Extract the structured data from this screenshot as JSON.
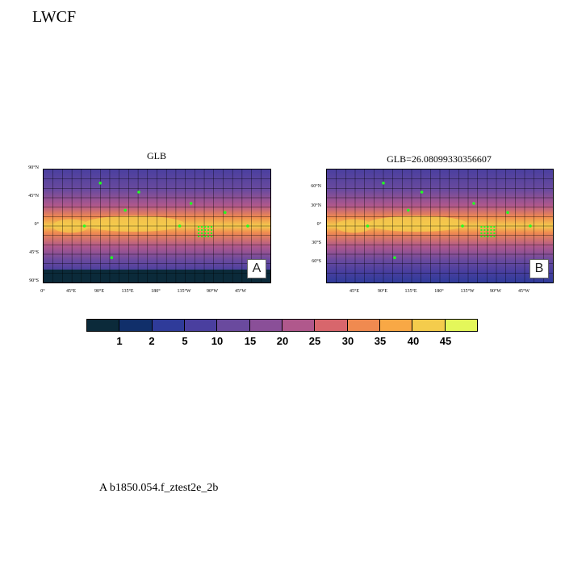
{
  "title": "LWCF",
  "footnote": "A  b1850.054.f_ztest2e_2b",
  "panels": [
    {
      "title": "GLB",
      "badge": "A",
      "lat_ticks": [
        "90°N",
        "45°N",
        "0°",
        "45°S",
        "90°S"
      ],
      "lon_ticks": [
        "0°",
        "45°E",
        "90°E",
        "135°E",
        "180°",
        "135°W",
        "90°W",
        "45°W"
      ]
    },
    {
      "title": "GLB=26.08099330356607",
      "badge": "B",
      "lat_ticks": [
        "60°N",
        "30°N",
        "0°",
        "30°S",
        "60°S"
      ],
      "lon_ticks": [
        "45°E",
        "90°E",
        "135°E",
        "180°",
        "135°W",
        "90°W",
        "45°W"
      ]
    }
  ],
  "colorbar": {
    "labels": [
      "1",
      "2",
      "5",
      "10",
      "15",
      "20",
      "25",
      "30",
      "35",
      "40",
      "45"
    ],
    "colors": [
      "#0b2a3a",
      "#102f6a",
      "#2f3b9a",
      "#4a3f9f",
      "#6a4a9e",
      "#8a4f98",
      "#b0588c",
      "#d8666c",
      "#f08a50",
      "#f8a845",
      "#f4cc4c",
      "#e4f75a"
    ]
  }
}
